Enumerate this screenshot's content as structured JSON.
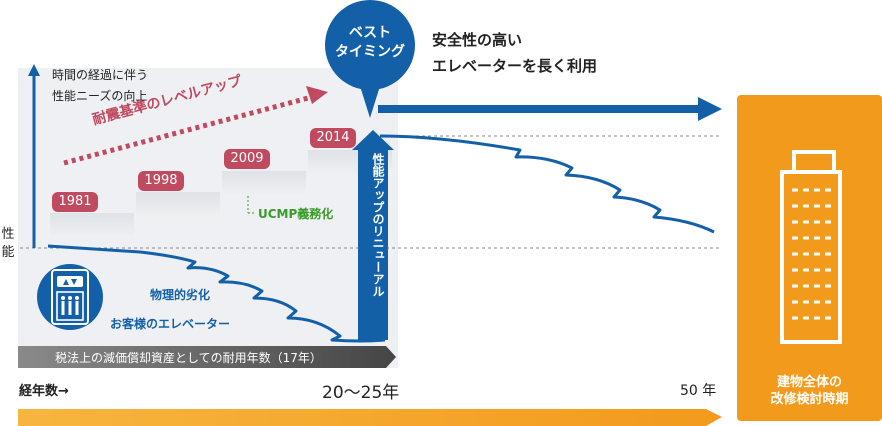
{
  "header": {
    "bubble_line1": "ベスト",
    "bubble_line2": "タイミング",
    "caption_line1": "安全性の高い",
    "caption_line2": "エレベーターを長く利用"
  },
  "yaxis": {
    "char1": "性",
    "char2": "能",
    "note_line1": "時間の経過に伴う",
    "note_line2": "性能ニーズの向上"
  },
  "trend_label": "耐震基準のレベルアップ",
  "years": [
    "1981",
    "1998",
    "2009",
    "2014"
  ],
  "ucmp_label": "UCMP義務化",
  "renewal_label": "性能アップのリニューアル",
  "deterioration_label": "物理的劣化",
  "customer_elevator_label": "お客様のエレベーター",
  "depreciation_bar": "税法上の減価償却資産としての耐用年数（17年）",
  "xaxis": {
    "label": "経年数→",
    "mid_tick": "20～25年",
    "end_tick": "50 年"
  },
  "side_panel": {
    "line1": "建物全体の",
    "line2": "改修検討時期"
  },
  "colors": {
    "blue": "#1460a8",
    "orange": "#f29a1c",
    "crimson": "#c04a5f",
    "green": "#3a9a2a",
    "gray": "#5a5a5a"
  },
  "icons": [
    "elevator-icon",
    "building-icon"
  ]
}
